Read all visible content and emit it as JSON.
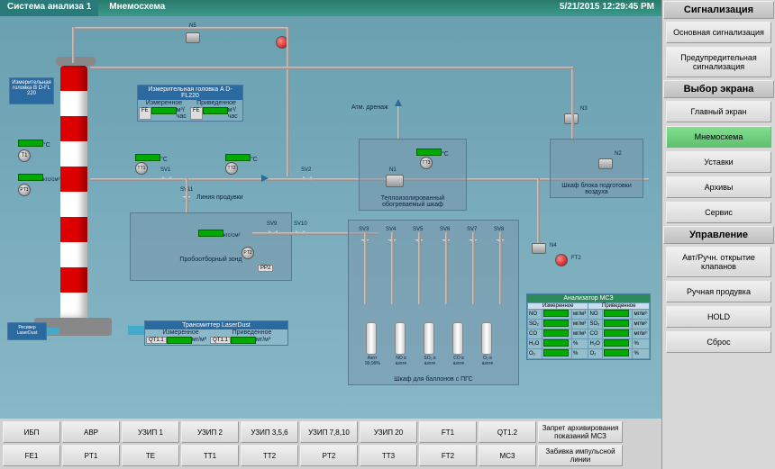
{
  "header": {
    "title": "Система анализа 1",
    "sub": "Мнемосхема",
    "timestamp": "5/21/2015 12:29:45 PM"
  },
  "sidebar": {
    "sections": [
      {
        "header": "Сигнализация",
        "items": [
          {
            "label": "Основная сигнализация",
            "active": false
          },
          {
            "label": "Предупредительная сигнализация",
            "active": false
          }
        ]
      },
      {
        "header": "Выбор экрана",
        "items": [
          {
            "label": "Главный экран",
            "active": false
          },
          {
            "label": "Мнемосхема",
            "active": true
          },
          {
            "label": "Уставки",
            "active": false
          },
          {
            "label": "Архивы",
            "active": false
          },
          {
            "label": "Сервис",
            "active": false
          }
        ]
      },
      {
        "header": "Управление",
        "items": [
          {
            "label": "Авт/Ручн. открытие клапанов",
            "active": false
          },
          {
            "label": "Ручная продувка",
            "active": false
          },
          {
            "label": "HOLD",
            "active": false
          },
          {
            "label": "Сброс",
            "active": false
          }
        ]
      }
    ]
  },
  "bottom": {
    "row1": [
      "ИБП",
      "АВР",
      "УЗИП 1",
      "УЗИП 2",
      "УЗИП 3,5,6",
      "УЗИП 7,8,10",
      "УЗИП 20",
      "FT1",
      "QT1.2"
    ],
    "row1_wide": "Запрет архивирования показаний МСЗ",
    "row2": [
      "FE1",
      "PT1",
      "TE",
      "TT1",
      "TT2",
      "PT2",
      "TT3",
      "FT2",
      "MC3"
    ],
    "row2_wide": "Забивка импульсной линии"
  },
  "scheme": {
    "colors": {
      "pipe": "#b0b0b0",
      "box_hdr": "#2a6aa0",
      "bg1": "#6aa0b0",
      "bg2": "#88b8c8"
    },
    "box_dfl220_b": {
      "title": "Измерительная головка B D-FL 220"
    },
    "box_dfl220_a": {
      "title": "Измерительная головка A D-FL220",
      "cols": [
        "Измеренное",
        "Приведенное"
      ],
      "tag": "FE",
      "unit": "м³/час"
    },
    "box_laserdust": {
      "title": "Трансмиттер LaserDust",
      "cols": [
        "Измеренное",
        "Приведенное"
      ],
      "left_tag": "QT1.1",
      "left_unit": "мг/м³",
      "right_tag": "QT1.1",
      "right_unit": "мг/м³"
    },
    "receiver_label": "Ресивер LaserDust",
    "stack_sensors": {
      "t1": {
        "tag": "T1",
        "unit": "°C"
      },
      "p1": {
        "tag": "PT1",
        "unit": "кгс/см²"
      }
    },
    "probe": {
      "label": "Пробоотборный зонд",
      "tt1": {
        "tag": "TT1",
        "unit": "°C"
      },
      "sv1": "SV1",
      "sv11": "SV11",
      "pp_label": "Линия продувки",
      "pp2": {
        "tag": "PP2",
        "unit": "кгс/см²"
      },
      "pt2": {
        "tag": "PT2"
      },
      "sv9": "SV9",
      "sv10": "SV10",
      "tt2": {
        "tag": "TT2",
        "unit": "°C"
      }
    },
    "sv2": "SV2",
    "drain_label": "Атм. дренаж",
    "heated_cabinet": {
      "label": "Теплоизолированный обогреваемый шкаф",
      "tt3": {
        "tag": "TT3",
        "unit": "°C"
      }
    },
    "n1": "N1",
    "n2": "N2",
    "n3": "N3",
    "n4": "N4",
    "n5": "N5",
    "air_cabinet": "Шкаф блока подготовки воздуха",
    "cyl_cabinet": {
      "label": "Шкаф для баллонов с ПГС",
      "sv": [
        "SV3",
        "SV4",
        "SV5",
        "SV6",
        "SV7",
        "SV8"
      ],
      "cyls": [
        "Азот 99,99%",
        "NO в азоте",
        "SO₂ в азоте",
        "CO в азоте",
        "O₂ в азоте"
      ]
    },
    "analyzer": {
      "title": "Анализатор МСЗ",
      "cols": [
        "Измеренное",
        "Приведенное"
      ],
      "rows": [
        {
          "name": "NO",
          "u1": "мг/м³",
          "name2": "NO",
          "u2": "мг/м³"
        },
        {
          "name": "SO₂",
          "u1": "мг/м³",
          "name2": "SO₂",
          "u2": "мг/м³"
        },
        {
          "name": "CO",
          "u1": "мг/м³",
          "name2": "CO",
          "u2": "мг/м³"
        },
        {
          "name": "H₂O",
          "u1": "%",
          "name2": "H₂O",
          "u2": "%"
        },
        {
          "name": "O₂",
          "u1": "%",
          "name2": "O₂",
          "u2": "%"
        }
      ]
    },
    "ft2": "FT2"
  }
}
